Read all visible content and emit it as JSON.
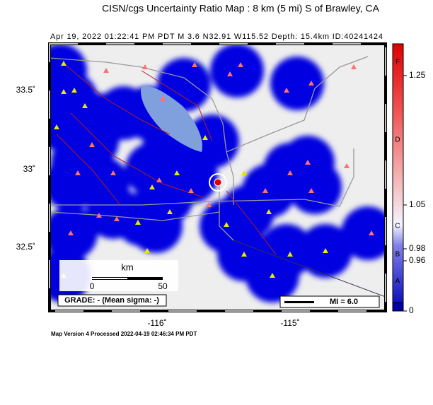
{
  "header": {
    "title": "CISN/cgs Uncertainty Ratio Map : 8 km (5 mi) S of Brawley, CA",
    "subtitle": "Apr 19, 2022 01:22:41 PM PDT   M 3.6   N32.91 W115.52   Depth: 15.4km   ID:40241424"
  },
  "axes": {
    "lat_labels": [
      "33.5˚",
      "33˚",
      "32.5˚"
    ],
    "lon_labels": [
      "-116˚",
      "-115˚"
    ]
  },
  "scale_bar": {
    "unit": "km",
    "start": 0,
    "end": 50
  },
  "grade": "GRADE: - (Mean sigma: -)",
  "mi_legend": "MI = 6.0",
  "colorbar": {
    "grades": [
      "F",
      "D",
      "C",
      "B",
      "A"
    ],
    "values": [
      1.25,
      1.05,
      0.98,
      0.96,
      0
    ]
  },
  "footer": "Map Version 4 Processed 2022-04-19 02:46:34 PM PDT"
}
